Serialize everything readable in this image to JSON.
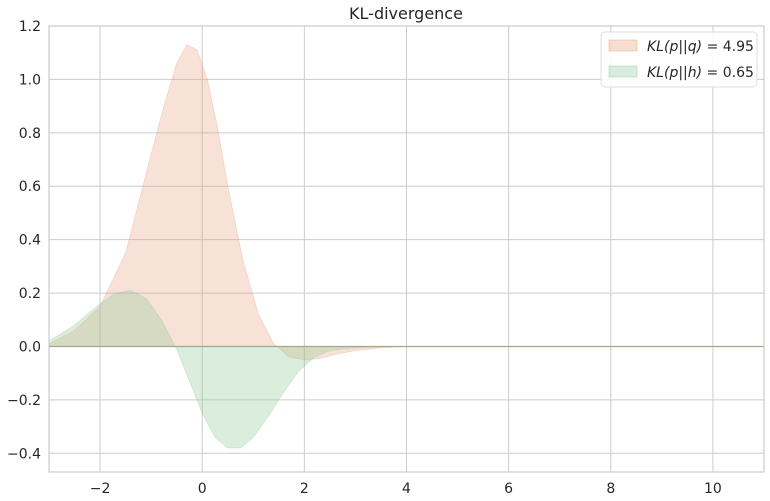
{
  "chart_data": {
    "type": "area",
    "title": "KL-divergence",
    "xlabel": "",
    "ylabel": "",
    "xlim": [
      -3,
      11
    ],
    "ylim": [
      -0.47,
      1.2
    ],
    "x_ticks": [
      -2,
      0,
      2,
      4,
      6,
      8,
      10
    ],
    "x_tick_labels": [
      "−2",
      "0",
      "2",
      "4",
      "6",
      "8",
      "10"
    ],
    "y_ticks": [
      -0.4,
      -0.2,
      0.0,
      0.2,
      0.4,
      0.6,
      0.8,
      1.0,
      1.2
    ],
    "y_tick_labels": [
      "−0.4",
      "−0.2",
      "0.0",
      "0.2",
      "0.4",
      "0.6",
      "0.8",
      "1.0",
      "1.2"
    ],
    "grid": true,
    "legend_position": "top-right",
    "series": [
      {
        "name": "KL(p||q) = 4.95",
        "legend_prefix": "KL(p||q)",
        "legend_value": "= 4.95",
        "color": "#e8a07a",
        "x": [
          -3.0,
          -2.5,
          -2.0,
          -1.5,
          -1.0,
          -0.75,
          -0.5,
          -0.3,
          -0.1,
          0.1,
          0.3,
          0.5,
          0.8,
          1.1,
          1.4,
          1.7,
          2.0,
          2.3,
          2.6,
          3.0,
          3.5,
          4.0,
          6.0,
          8.0,
          10.0,
          11.0
        ],
        "values": [
          0.01,
          0.06,
          0.15,
          0.35,
          0.72,
          0.9,
          1.06,
          1.13,
          1.11,
          1.0,
          0.82,
          0.6,
          0.32,
          0.12,
          0.01,
          -0.04,
          -0.05,
          -0.045,
          -0.03,
          -0.015,
          -0.005,
          0.0,
          0.0,
          0.0,
          0.0,
          0.0
        ]
      },
      {
        "name": "KL(p||h) = 0.65",
        "legend_prefix": "KL(p||h)",
        "legend_value": "= 0.65",
        "color": "#8fca98",
        "x": [
          -3.0,
          -2.5,
          -2.0,
          -1.7,
          -1.4,
          -1.1,
          -0.8,
          -0.5,
          -0.25,
          0.0,
          0.25,
          0.5,
          0.75,
          1.0,
          1.3,
          1.6,
          1.9,
          2.2,
          2.5,
          3.0,
          3.5,
          4.0,
          6.0,
          8.0,
          10.0,
          11.0
        ],
        "values": [
          0.02,
          0.08,
          0.16,
          0.2,
          0.21,
          0.18,
          0.1,
          -0.01,
          -0.13,
          -0.25,
          -0.34,
          -0.38,
          -0.38,
          -0.34,
          -0.26,
          -0.17,
          -0.09,
          -0.04,
          -0.015,
          -0.005,
          0.0,
          0.0,
          0.0,
          0.0,
          0.0,
          0.0
        ]
      }
    ]
  }
}
